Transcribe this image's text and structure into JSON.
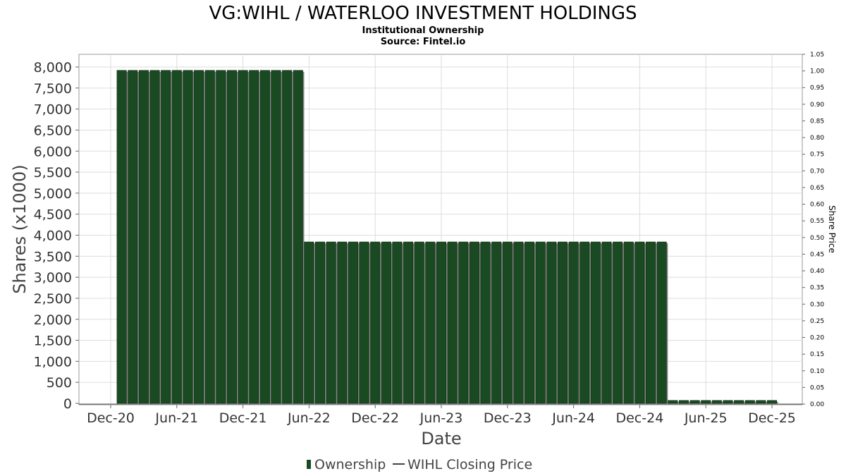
{
  "chart_data": {
    "type": "bar",
    "title": "VG:WIHL / WATERLOO INVESTMENT HOLDINGS",
    "subtitle": "Institutional Ownership",
    "source": "Source: Fintel.io",
    "xlabel": "Date",
    "ylabel": "Shares (x1000)",
    "ylabel_right": "Share Price",
    "ylim": [
      0,
      8000
    ],
    "ylim_right": [
      0,
      1.05
    ],
    "yticks": [
      "0",
      "500",
      "1,000",
      "1,500",
      "2,000",
      "2,500",
      "3,000",
      "3,500",
      "4,000",
      "4,500",
      "5,000",
      "5,500",
      "6,000",
      "6,500",
      "7,000",
      "7,500",
      "8,000"
    ],
    "yticks_right": [
      "0.00",
      "0.05",
      "0.10",
      "0.15",
      "0.20",
      "0.25",
      "0.30",
      "0.35",
      "0.40",
      "0.45",
      "0.50",
      "0.55",
      "0.60",
      "0.65",
      "0.70",
      "0.75",
      "0.80",
      "0.85",
      "0.90",
      "0.95",
      "1.00",
      "1.05"
    ],
    "xticks": [
      "Dec-20",
      "Jun-21",
      "Dec-21",
      "Jun-22",
      "Dec-22",
      "Jun-23",
      "Dec-23",
      "Jun-24",
      "Dec-24",
      "Jun-25",
      "Dec-25"
    ],
    "series": [
      {
        "name": "Ownership",
        "color": "#1a4a22",
        "segments": [
          {
            "from": "2021-01",
            "to": "2022-05",
            "value": 7920
          },
          {
            "from": "2022-06",
            "to": "2025-02",
            "value": 3840
          },
          {
            "from": "2025-03",
            "to": "2025-12",
            "value": 70
          }
        ]
      },
      {
        "name": "WIHL Closing Price",
        "color": "#444444",
        "values": []
      }
    ],
    "grid": true,
    "legend": "bottom-center"
  }
}
